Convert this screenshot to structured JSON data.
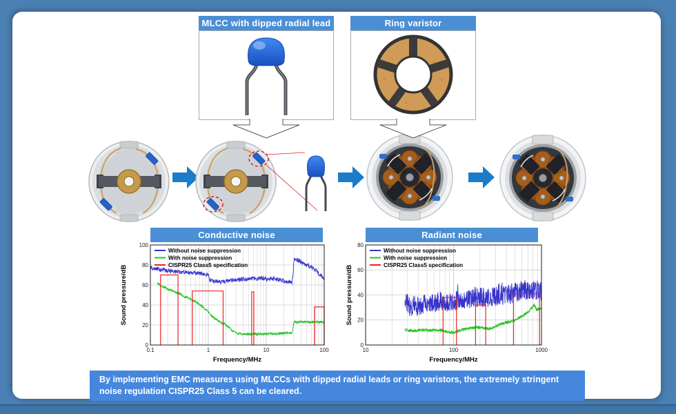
{
  "panels": [
    {
      "label": "MLCC with dipped radial lead"
    },
    {
      "label": "Ring varistor"
    }
  ],
  "summary": {
    "text": "By implementing EMC measures using MLCCs with dipped radial leads or ring varistors, the extremely stringent noise regulation CISPR25 Class 5 can be cleared."
  },
  "colors": {
    "header_blue": "#4a8fd6",
    "summary_blue": "#4587dd",
    "frame_blue": "#4a80b4",
    "arrow_blue": "#1b7cc9",
    "series_blue": "#3534cb",
    "series_green": "#21c421",
    "series_red": "#ee2020",
    "mlcc_blue": "#2a6fe0",
    "varistor_tan": "#d09b56"
  },
  "chart_data": [
    {
      "type": "line",
      "title": "Conductive noise",
      "xlabel": "Frequency/MHz",
      "ylabel": "Sound pressure/dB",
      "xscale": "log",
      "xlim": [
        0.1,
        100
      ],
      "ylim": [
        0,
        100
      ],
      "xticks": [
        0.1,
        1,
        10,
        100
      ],
      "yticks": [
        0,
        20,
        40,
        60,
        80,
        100
      ],
      "grid": true,
      "legend_position": "top-left",
      "series": [
        {
          "name": "Without noise suppression",
          "color": "#3534cb",
          "noise_db": 2.2,
          "spiky": false,
          "points": [
            [
              0.1,
              77
            ],
            [
              0.13,
              76
            ],
            [
              0.17,
              75
            ],
            [
              0.22,
              74
            ],
            [
              0.3,
              73
            ],
            [
              0.4,
              72.5
            ],
            [
              0.55,
              72
            ],
            [
              0.7,
              71.5
            ],
            [
              0.9,
              71
            ],
            [
              1.0,
              70
            ],
            [
              1.05,
              65
            ],
            [
              1.3,
              63.5
            ],
            [
              1.7,
              63
            ],
            [
              2.2,
              64
            ],
            [
              3,
              65
            ],
            [
              4,
              66
            ],
            [
              5,
              66
            ],
            [
              6.5,
              66.5
            ],
            [
              8,
              67
            ],
            [
              10,
              66
            ],
            [
              13,
              66.5
            ],
            [
              17,
              65.5
            ],
            [
              20,
              64
            ],
            [
              24,
              63
            ],
            [
              28,
              63
            ],
            [
              29,
              70
            ],
            [
              30,
              86
            ],
            [
              35,
              85
            ],
            [
              40,
              83
            ],
            [
              50,
              80
            ],
            [
              60,
              78
            ],
            [
              70,
              75
            ],
            [
              80,
              72
            ],
            [
              90,
              69
            ],
            [
              100,
              66
            ]
          ]
        },
        {
          "name": "With noise suppression",
          "color": "#21c421",
          "noise_db": 1.3,
          "spiky": false,
          "points": [
            [
              0.13,
              62
            ],
            [
              0.17,
              58
            ],
            [
              0.22,
              55
            ],
            [
              0.3,
              52
            ],
            [
              0.4,
              48
            ],
            [
              0.5,
              46
            ],
            [
              0.65,
              42
            ],
            [
              0.8,
              38
            ],
            [
              1.0,
              33
            ],
            [
              1.2,
              28
            ],
            [
              1.5,
              24
            ],
            [
              1.9,
              21
            ],
            [
              2.3,
              17
            ],
            [
              2.8,
              13
            ],
            [
              3.2,
              11.5
            ],
            [
              4,
              11
            ],
            [
              6,
              11
            ],
            [
              8,
              11
            ],
            [
              10,
              11
            ],
            [
              14,
              11
            ],
            [
              18,
              11.5
            ],
            [
              23,
              12
            ],
            [
              28,
              12
            ],
            [
              29,
              17
            ],
            [
              30,
              23
            ],
            [
              40,
              23
            ],
            [
              60,
              23
            ],
            [
              80,
              23
            ],
            [
              100,
              23
            ]
          ]
        }
      ],
      "limits": {
        "name": "CISPR25 Class5 specification",
        "color": "#ee2020",
        "rects": [
          [
            0.15,
            0.3,
            70
          ],
          [
            0.53,
            1.8,
            54
          ],
          [
            5.6,
            6.1,
            53
          ],
          [
            68,
            100,
            38
          ]
        ]
      }
    },
    {
      "type": "line",
      "title": "Radiant noise",
      "xlabel": "Frequency/MHz",
      "ylabel": "Sound pressure/dB",
      "xscale": "log",
      "xlim": [
        10,
        1000
      ],
      "ylim": [
        0,
        80
      ],
      "xticks": [
        10,
        100,
        1000
      ],
      "yticks": [
        0,
        20,
        40,
        60,
        80
      ],
      "grid": true,
      "legend_position": "top-left",
      "series": [
        {
          "name": "Without noise suppression",
          "color": "#3534cb",
          "noise_db": 8,
          "spiky": true,
          "points": [
            [
              28,
              38
            ],
            [
              30,
              33
            ],
            [
              33,
              30
            ],
            [
              36,
              32
            ],
            [
              40,
              31
            ],
            [
              45,
              32
            ],
            [
              50,
              33
            ],
            [
              55,
              32
            ],
            [
              60,
              34
            ],
            [
              70,
              35
            ],
            [
              80,
              34
            ],
            [
              90,
              35
            ],
            [
              100,
              36
            ],
            [
              115,
              35
            ],
            [
              130,
              36
            ],
            [
              150,
              37
            ],
            [
              170,
              37
            ],
            [
              200,
              38
            ],
            [
              230,
              38
            ],
            [
              260,
              38
            ],
            [
              300,
              39
            ],
            [
              350,
              40
            ],
            [
              400,
              40
            ],
            [
              450,
              41
            ],
            [
              500,
              42
            ],
            [
              560,
              43
            ],
            [
              630,
              44
            ],
            [
              700,
              44
            ],
            [
              800,
              43
            ],
            [
              900,
              44
            ],
            [
              1000,
              42
            ]
          ]
        },
        {
          "name": "With noise suppression",
          "color": "#21c421",
          "noise_db": 1.2,
          "spiky": false,
          "points": [
            [
              28,
              12
            ],
            [
              32,
              11.5
            ],
            [
              36,
              11
            ],
            [
              40,
              12
            ],
            [
              45,
              12
            ],
            [
              50,
              12
            ],
            [
              55,
              11.5
            ],
            [
              60,
              12
            ],
            [
              70,
              12
            ],
            [
              80,
              11
            ],
            [
              90,
              10
            ],
            [
              100,
              10
            ],
            [
              110,
              11
            ],
            [
              120,
              12
            ],
            [
              140,
              13
            ],
            [
              160,
              13.5
            ],
            [
              180,
              14
            ],
            [
              200,
              14
            ],
            [
              230,
              13.5
            ],
            [
              260,
              13
            ],
            [
              300,
              15
            ],
            [
              350,
              17
            ],
            [
              400,
              18
            ],
            [
              450,
              19
            ],
            [
              500,
              20
            ],
            [
              560,
              22
            ],
            [
              630,
              24
            ],
            [
              700,
              26
            ],
            [
              780,
              30
            ],
            [
              830,
              32
            ],
            [
              880,
              28
            ],
            [
              940,
              29
            ],
            [
              1000,
              30
            ]
          ]
        }
      ],
      "limits": {
        "name": "CISPR25 Class5 specification",
        "color": "#ee2020",
        "rects": [
          [
            76,
            108,
            38
          ],
          [
            178,
            232,
            32
          ],
          [
            480,
            950,
            41
          ]
        ]
      }
    }
  ]
}
